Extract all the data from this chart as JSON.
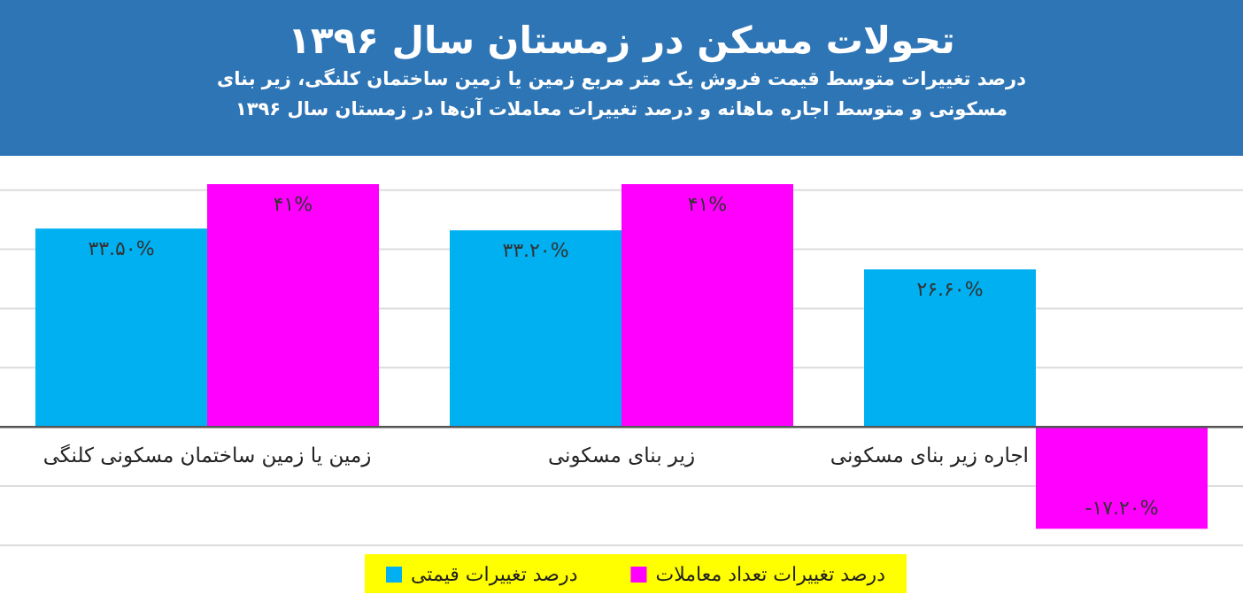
{
  "chart_data": {
    "type": "bar",
    "title": "تحولات مسکن در زمستان سال ۱۳۹۶",
    "subtitle": "درصد تغییرات متوسط قیمت فروش یک متر مربع زمین یا زمین ساختمان کلنگی، زیر بنای مسکونی و متوسط اجاره ماهانه و درصد تغییرات معاملات آن‌ها در زمستان سال ۱۳۹۶",
    "categories": [
      "زمین یا زمین ساختمان مسکونی کلنگی",
      "زیر بنای مسکونی",
      "اجاره زیر بنای مسکونی"
    ],
    "series": [
      {
        "name": "درصد تغییرات قیمتی",
        "color": "#00b0f0",
        "values": [
          33.5,
          33.2,
          26.6
        ],
        "value_labels": [
          "۳۳.۵۰%",
          "۳۳.۲۰%",
          "۲۶.۶۰%"
        ]
      },
      {
        "name": "درصد تغییرات تعداد معاملات",
        "color": "#ff00ff",
        "values": [
          41,
          41,
          -17.2
        ],
        "value_labels": [
          "۴۱%",
          "۴۱%",
          "-۱۷.۲۰%"
        ]
      }
    ],
    "yticks": [
      {
        "value": -20,
        "label": null
      },
      {
        "value": -10,
        "label": null
      },
      {
        "value": 0,
        "label": null
      },
      {
        "value": 10,
        "label": null
      },
      {
        "value": 20,
        "label": null
      },
      {
        "value": 30,
        "label": null
      },
      {
        "value": 40,
        "label": null
      }
    ],
    "grid": "y",
    "legend": "bottom",
    "tick_labels": "x"
  }
}
